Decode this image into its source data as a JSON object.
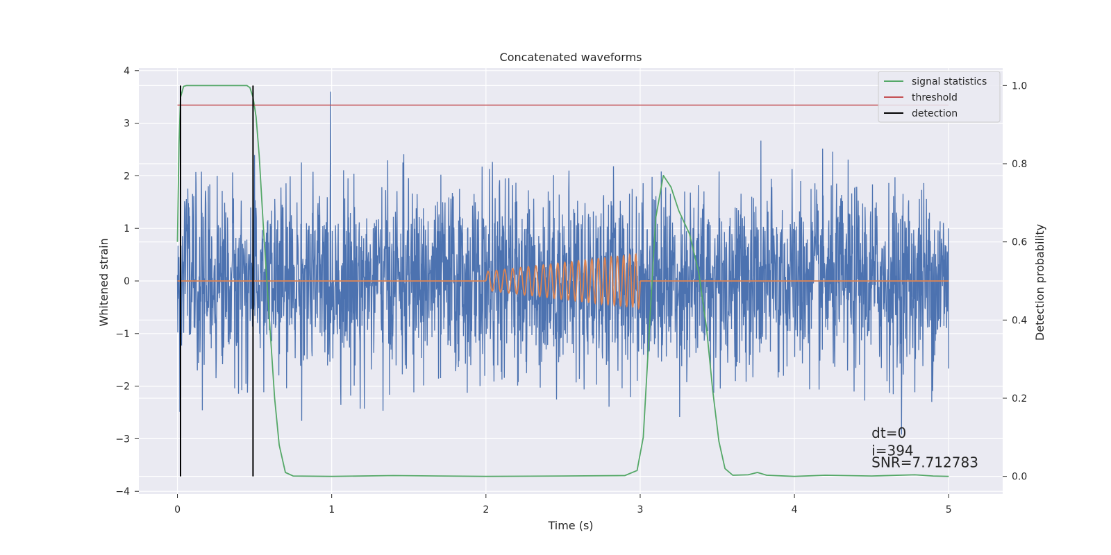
{
  "chart_data": {
    "type": "line",
    "title": "Concatenated waveforms",
    "xlabel": "Time (s)",
    "ylabel": "Whitened strain",
    "ylabel_right": "Detection probability",
    "xlim": [
      -0.25,
      5.35
    ],
    "ylim": [
      -4.05,
      4.05
    ],
    "ylim_right": [
      -0.045,
      1.045
    ],
    "xticks": [
      0,
      1,
      2,
      3,
      4,
      5
    ],
    "yticks": [
      -4,
      -3,
      -2,
      -1,
      0,
      1,
      2,
      3,
      4
    ],
    "yticks_right": [
      0.0,
      0.2,
      0.4,
      0.6,
      0.8,
      1.0
    ],
    "ytick_labels": [
      "−4",
      "−3",
      "−2",
      "−1",
      "0",
      "1",
      "2",
      "3",
      "4"
    ],
    "yticks_right_labels": [
      "0.0",
      "0.2",
      "0.4",
      "0.6",
      "0.8",
      "1.0"
    ],
    "grid": true,
    "legend_position": "top-right",
    "noise_description": "whitened strain noise, std ~0.9, range about -3.5 to 3.6 over t=0..5 s",
    "series": [
      {
        "name": "",
        "role": "whitened strain",
        "color": "#4C72B0",
        "axis": "left",
        "generated": true
      },
      {
        "name": "",
        "role": "injected chirp",
        "color": "#DD8452",
        "axis": "left",
        "chirp": {
          "t_start": 2.0,
          "t_end": 3.0,
          "amp_start": 0.18,
          "amp_end": 0.52,
          "f_start": 18,
          "f_end": 26
        }
      },
      {
        "name": "signal statistics",
        "color": "#55A868",
        "axis": "right",
        "points": [
          [
            0.0,
            0.6
          ],
          [
            0.01,
            0.85
          ],
          [
            0.02,
            0.97
          ],
          [
            0.04,
            0.998
          ],
          [
            0.06,
            1.0
          ],
          [
            0.45,
            1.0
          ],
          [
            0.47,
            0.995
          ],
          [
            0.49,
            0.97
          ],
          [
            0.51,
            0.92
          ],
          [
            0.53,
            0.82
          ],
          [
            0.56,
            0.62
          ],
          [
            0.6,
            0.38
          ],
          [
            0.63,
            0.2
          ],
          [
            0.66,
            0.08
          ],
          [
            0.7,
            0.01
          ],
          [
            0.75,
            0.001
          ],
          [
            1.0,
            0.0
          ],
          [
            1.4,
            0.002
          ],
          [
            1.7,
            0.001
          ],
          [
            2.0,
            0.0
          ],
          [
            2.5,
            0.001
          ],
          [
            2.9,
            0.002
          ],
          [
            2.98,
            0.015
          ],
          [
            3.02,
            0.1
          ],
          [
            3.06,
            0.38
          ],
          [
            3.1,
            0.66
          ],
          [
            3.15,
            0.77
          ],
          [
            3.2,
            0.74
          ],
          [
            3.25,
            0.68
          ],
          [
            3.32,
            0.62
          ],
          [
            3.38,
            0.52
          ],
          [
            3.43,
            0.38
          ],
          [
            3.47,
            0.22
          ],
          [
            3.51,
            0.09
          ],
          [
            3.55,
            0.02
          ],
          [
            3.6,
            0.003
          ],
          [
            3.7,
            0.004
          ],
          [
            3.76,
            0.01
          ],
          [
            3.82,
            0.003
          ],
          [
            4.0,
            0.0
          ],
          [
            4.2,
            0.003
          ],
          [
            4.5,
            0.001
          ],
          [
            4.78,
            0.004
          ],
          [
            4.9,
            0.001
          ],
          [
            5.0,
            0.0
          ]
        ]
      },
      {
        "name": "threshold",
        "color": "#C44E52",
        "axis": "right",
        "value": 0.95,
        "x_range": [
          0.0,
          5.0
        ]
      },
      {
        "name": "detection",
        "color": "#000000",
        "axis": "right",
        "x": [
          0.02,
          0.49
        ],
        "y_range": [
          0.0,
          1.0
        ]
      }
    ],
    "annotations": [
      {
        "text": "dt=0",
        "x": 4.5,
        "y": -2.98
      },
      {
        "text": "i=394",
        "x": 4.5,
        "y": -3.32
      },
      {
        "text": "SNR=7.712783",
        "x": 4.5,
        "y": -3.54
      }
    ]
  }
}
